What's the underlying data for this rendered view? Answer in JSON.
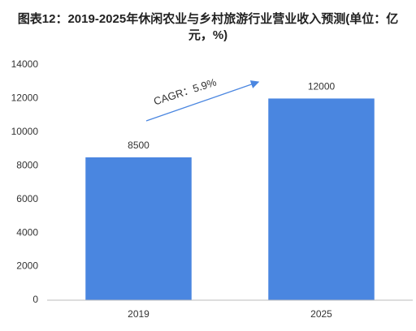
{
  "chart_data": {
    "type": "bar",
    "title": "图表12：2019-2025年休闲农业与乡村旅游行业营业收入预测(单位：亿元，%)",
    "categories": [
      "2019",
      "2025"
    ],
    "values": [
      8500,
      12000
    ],
    "color": "#4a86e0",
    "ylim": [
      0,
      14000
    ],
    "yticks": [
      0,
      2000,
      4000,
      6000,
      8000,
      10000,
      12000,
      14000
    ],
    "annotation": "CAGR：5.9%"
  }
}
